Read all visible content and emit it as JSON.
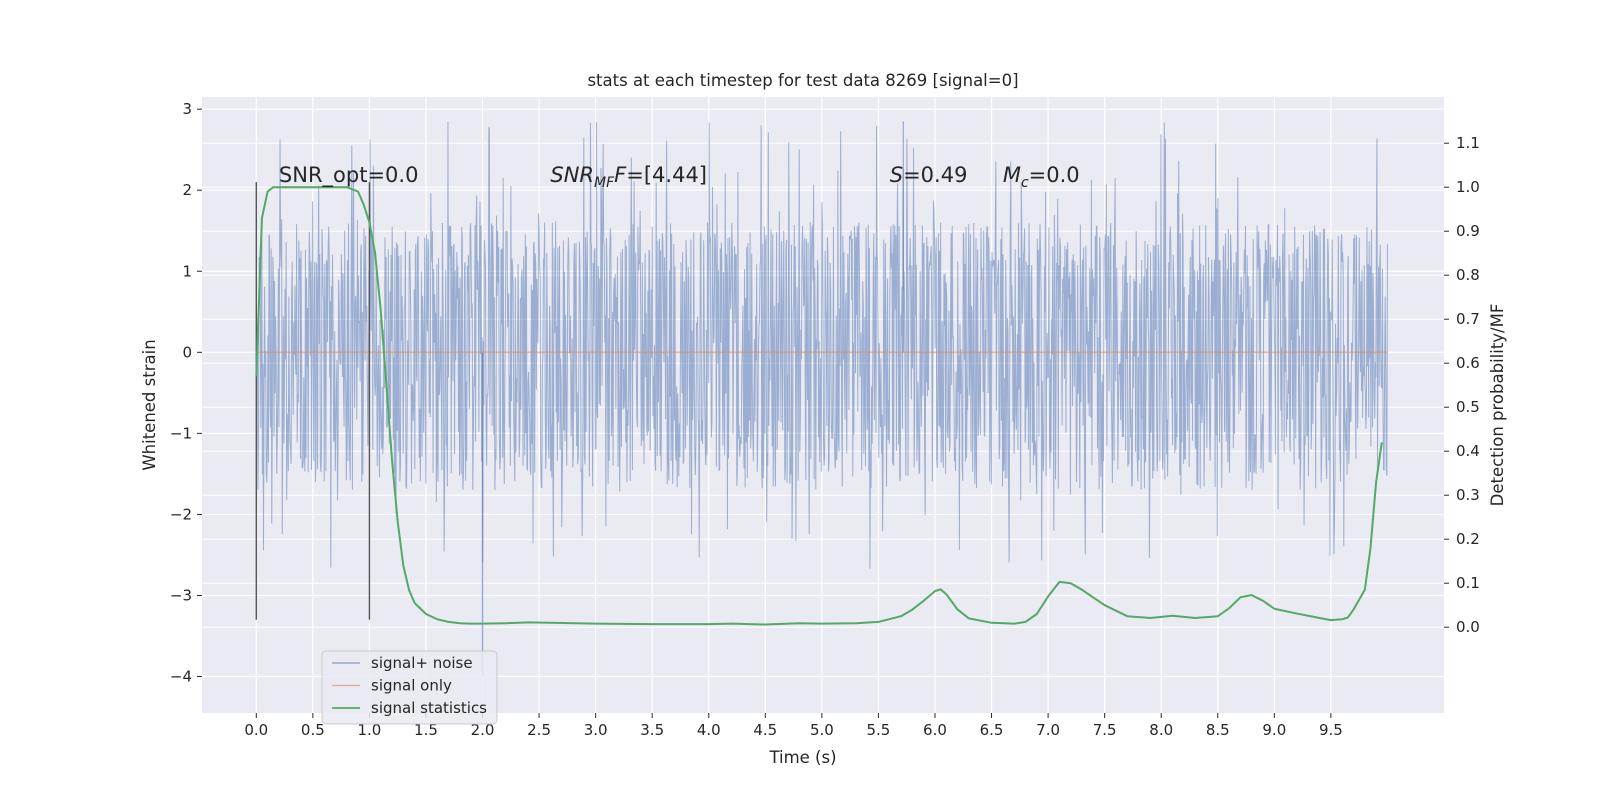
{
  "chart_data": {
    "type": "line",
    "title": "stats at each timestep for test data 8269 [signal=0]",
    "xlabel": "Time (s)",
    "ylabel": "Whitened strain",
    "y2label": "Detection probability/MF",
    "xlim": [
      -0.48,
      10.5
    ],
    "ylim": [
      -4.45,
      3.15
    ],
    "y2lim": [
      -0.195,
      1.205
    ],
    "xticks": [
      0.0,
      0.5,
      1.0,
      1.5,
      2.0,
      2.5,
      3.0,
      3.5,
      4.0,
      4.5,
      5.0,
      5.5,
      6.0,
      6.5,
      7.0,
      7.5,
      8.0,
      8.5,
      9.0,
      9.5
    ],
    "xtick_labels": [
      "0.0",
      "0.5",
      "1.0",
      "1.5",
      "2.0",
      "2.5",
      "3.0",
      "3.5",
      "4.0",
      "4.5",
      "5.0",
      "5.5",
      "6.0",
      "6.5",
      "7.0",
      "7.5",
      "8.0",
      "8.5",
      "9.0",
      "9.5"
    ],
    "yticks": [
      3,
      2,
      1,
      0,
      -1,
      -2,
      -3,
      -4
    ],
    "ytick_labels": [
      "3",
      "2",
      "1",
      "0",
      "−1",
      "−2",
      "−3",
      "−4"
    ],
    "y2ticks": [
      1.1,
      1.0,
      0.9,
      0.8,
      0.7,
      0.6,
      0.5,
      0.4,
      0.3,
      0.2,
      0.1,
      0.0
    ],
    "y2tick_labels": [
      "1.1",
      "1.0",
      "0.9",
      "0.8",
      "0.7",
      "0.6",
      "0.5",
      "0.4",
      "0.3",
      "0.2",
      "0.1",
      "0.0"
    ],
    "grid": true,
    "legend_placement": "lower-left",
    "colors": {
      "background": "#eaeaf2",
      "grid": "#ffffff",
      "noise": "#4c72b0",
      "signal_only": "#dd8452",
      "statistics": "#55a868",
      "markers": "#555555"
    },
    "series": [
      {
        "name": "signal+ noise",
        "style": "noise",
        "t_range": [
          0.0,
          10.0
        ],
        "core_amplitude": 1.0,
        "peak_max": 2.85,
        "trough_min": -4.0
      },
      {
        "name": "signal only",
        "style": "flat",
        "t_range": [
          0.0,
          10.0
        ],
        "value": 0.0
      },
      {
        "name": "signal statistics",
        "style": "line",
        "x": [
          0.0,
          0.05,
          0.1,
          0.15,
          0.2,
          0.3,
          0.5,
          0.7,
          0.8,
          0.9,
          0.95,
          1.0,
          1.05,
          1.1,
          1.15,
          1.2,
          1.25,
          1.3,
          1.35,
          1.4,
          1.5,
          1.6,
          1.7,
          1.8,
          1.9,
          2.0,
          2.2,
          2.4,
          2.6,
          3.0,
          3.5,
          4.0,
          4.2,
          4.5,
          4.8,
          5.0,
          5.3,
          5.5,
          5.7,
          5.8,
          5.9,
          6.0,
          6.05,
          6.1,
          6.2,
          6.3,
          6.5,
          6.7,
          6.8,
          6.9,
          7.0,
          7.1,
          7.2,
          7.3,
          7.5,
          7.7,
          7.9,
          8.1,
          8.3,
          8.5,
          8.6,
          8.7,
          8.8,
          8.9,
          9.0,
          9.2,
          9.4,
          9.5,
          9.6,
          9.65,
          9.7,
          9.8,
          9.85,
          9.9,
          9.95
        ],
        "y": [
          0.57,
          0.93,
          0.99,
          1.0,
          1.0,
          1.0,
          1.0,
          1.0,
          1.0,
          0.99,
          0.96,
          0.92,
          0.85,
          0.72,
          0.55,
          0.38,
          0.24,
          0.14,
          0.085,
          0.055,
          0.03,
          0.018,
          0.012,
          0.009,
          0.008,
          0.008,
          0.009,
          0.011,
          0.01,
          0.008,
          0.007,
          0.007,
          0.008,
          0.006,
          0.009,
          0.008,
          0.009,
          0.012,
          0.025,
          0.04,
          0.06,
          0.082,
          0.086,
          0.075,
          0.04,
          0.02,
          0.01,
          0.008,
          0.012,
          0.03,
          0.07,
          0.103,
          0.1,
          0.085,
          0.05,
          0.025,
          0.021,
          0.026,
          0.021,
          0.025,
          0.043,
          0.068,
          0.073,
          0.06,
          0.042,
          0.031,
          0.021,
          0.016,
          0.018,
          0.022,
          0.04,
          0.085,
          0.18,
          0.33,
          0.42
        ]
      }
    ],
    "vlines": [
      {
        "x": 0.0,
        "ymin": -3.3,
        "ymax": 2.1
      },
      {
        "x": 1.0,
        "ymin": -3.3,
        "ymax": 2.1
      }
    ],
    "annotations": [
      {
        "key": "snr_opt",
        "text": "SNR_opt=0.0",
        "x": 0.2,
        "y": 2.1
      },
      {
        "key": "snr_mf",
        "base": "SNR",
        "sub": "MF",
        "tail": "F=[4.44]",
        "x": 2.6,
        "y": 2.1
      },
      {
        "key": "s_stat",
        "base": "S",
        "tail": "=0.49",
        "x": 5.6,
        "y": 2.1
      },
      {
        "key": "mc",
        "base": "M",
        "sub": "c",
        "tail": "=0.0",
        "x": 6.6,
        "y": 2.1
      }
    ]
  }
}
